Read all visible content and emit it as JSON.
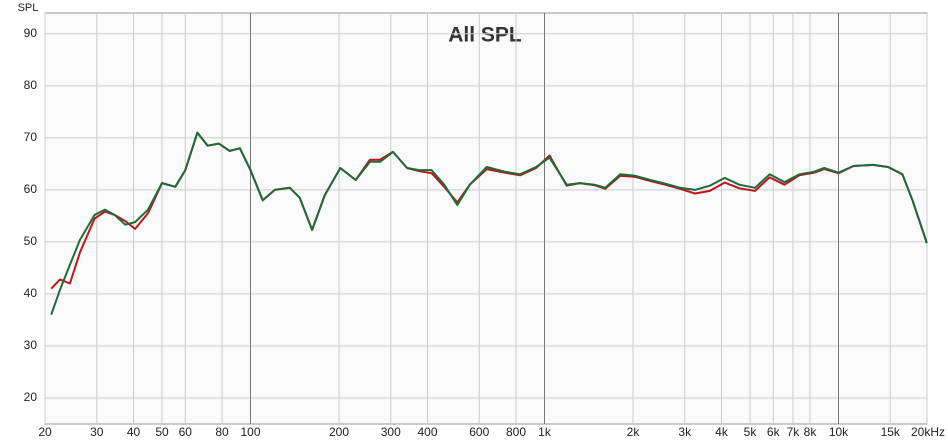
{
  "chart_data": {
    "type": "line",
    "title": "All SPL",
    "y_label": "SPL",
    "x": [
      21,
      22.5,
      24.3,
      26.3,
      29.5,
      32,
      34.5,
      37.5,
      40.5,
      44.8,
      50,
      55.5,
      60,
      66,
      71.5,
      78,
      85,
      92,
      100,
      110,
      121,
      136,
      147,
      162,
      179,
      202,
      228,
      255,
      276,
      305,
      341,
      375,
      413,
      456,
      505,
      557,
      636,
      733,
      826,
      936,
      1040,
      1190,
      1320,
      1480,
      1610,
      1810,
      2035,
      2290,
      2570,
      2890,
      3250,
      3650,
      4100,
      4600,
      5200,
      5830,
      6550,
      7360,
      8270,
      8940,
      10000,
      11260,
      13120,
      14730,
      16500,
      17850,
      19970
    ],
    "series": [
      {
        "name": "red",
        "color": "#c0151b",
        "values": [
          41,
          42.8,
          42,
          48,
          54.5,
          55.8,
          55.2,
          54,
          52.5,
          55.5,
          61.3,
          60.6,
          63.8,
          71,
          68.5,
          68.9,
          67.5,
          68,
          63.8,
          58,
          60,
          60.4,
          58.5,
          52.3,
          59,
          64.2,
          61.9,
          65.8,
          65.8,
          67.3,
          64.2,
          63.6,
          63.2,
          60.6,
          57.6,
          61,
          64,
          63.3,
          62.8,
          64.2,
          66.6,
          60.8,
          61.3,
          60.9,
          60.2,
          62.7,
          62.5,
          61.7,
          61,
          60.2,
          59.3,
          59.8,
          61.4,
          60.3,
          59.8,
          62.4,
          61,
          62.8,
          63.3,
          64,
          63.2,
          64.6,
          64.8,
          64.4,
          63,
          58,
          49.8
        ]
      },
      {
        "name": "green",
        "color": "#1e6b3a",
        "values": [
          36,
          40.8,
          45.6,
          50.4,
          55.2,
          56.2,
          55.2,
          53.3,
          53.8,
          56.2,
          61.3,
          60.6,
          63.8,
          71,
          68.5,
          68.9,
          67.5,
          68,
          63.8,
          58,
          60,
          60.4,
          58.5,
          52.3,
          59,
          64.2,
          61.9,
          65.4,
          65.4,
          67.3,
          64.2,
          63.8,
          63.8,
          61,
          57.1,
          61,
          64.4,
          63.5,
          63,
          64.4,
          66.2,
          61,
          61.3,
          61,
          60.4,
          63,
          62.7,
          61.9,
          61.2,
          60.4,
          60,
          60.8,
          62.3,
          61,
          60.4,
          63,
          61.5,
          63,
          63.5,
          64.2,
          63.3,
          64.6,
          64.8,
          64.4,
          63,
          58,
          49.8
        ]
      }
    ],
    "xlim": [
      20,
      20000
    ],
    "log_x": true,
    "ylim": [
      15,
      94
    ],
    "yticks": [
      20,
      30,
      40,
      50,
      60,
      70,
      80,
      90
    ],
    "xticks": [
      20,
      30,
      40,
      50,
      60,
      80,
      100,
      200,
      300,
      400,
      600,
      800,
      {
        "value": 1000,
        "label": "1k"
      },
      {
        "value": 2000,
        "label": "2k"
      },
      {
        "value": 3000,
        "label": "3k"
      },
      {
        "value": 4000,
        "label": "4k"
      },
      {
        "value": 5000,
        "label": "5k"
      },
      {
        "value": 6000,
        "label": "6k"
      },
      {
        "value": 7000,
        "label": "7k"
      },
      {
        "value": 8000,
        "label": "8k"
      },
      {
        "value": 10000,
        "label": "10k"
      },
      {
        "value": 15000,
        "label": "15k"
      },
      {
        "value": 20000,
        "label": "20kHz"
      }
    ],
    "grid": true
  }
}
